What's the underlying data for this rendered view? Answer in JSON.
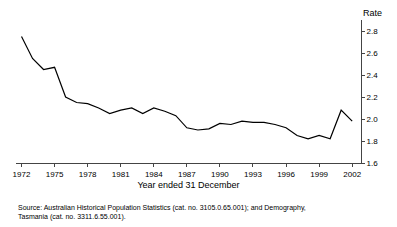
{
  "chart_data": {
    "type": "line",
    "x": [
      1972,
      1973,
      1974,
      1975,
      1976,
      1977,
      1978,
      1979,
      1980,
      1981,
      1982,
      1983,
      1984,
      1985,
      1986,
      1987,
      1988,
      1989,
      1990,
      1991,
      1992,
      1993,
      1994,
      1995,
      1996,
      1997,
      1998,
      1999,
      2000,
      2001,
      2002
    ],
    "values": [
      2.75,
      2.55,
      2.45,
      2.47,
      2.2,
      2.15,
      2.14,
      2.1,
      2.05,
      2.08,
      2.1,
      2.05,
      2.1,
      2.07,
      2.03,
      1.92,
      1.9,
      1.91,
      1.96,
      1.95,
      1.98,
      1.97,
      1.97,
      1.95,
      1.92,
      1.85,
      1.82,
      1.85,
      1.82,
      2.08,
      1.98
    ],
    "color": "#000000",
    "xlabel": "Year ended 31 December",
    "ylabel": "Rate",
    "annotations": [
      "Source: Australian Historical Population Statistics (cat. no. 3105.0.65.001); and Demography,\nTasmania (cat. no. 3311.6.55.001)."
    ],
    "xlim": [
      1971.5,
      2002.8
    ],
    "xticks": [
      1972,
      1975,
      1978,
      1981,
      1984,
      1987,
      1990,
      1993,
      1996,
      1999,
      2002
    ],
    "ylim": [
      1.6,
      2.9
    ],
    "yticks": [
      1.6,
      1.8,
      {
        "value": 2.0,
        "label": "2.0"
      },
      2.2,
      2.4,
      2.6,
      2.8
    ],
    "grid": false
  }
}
